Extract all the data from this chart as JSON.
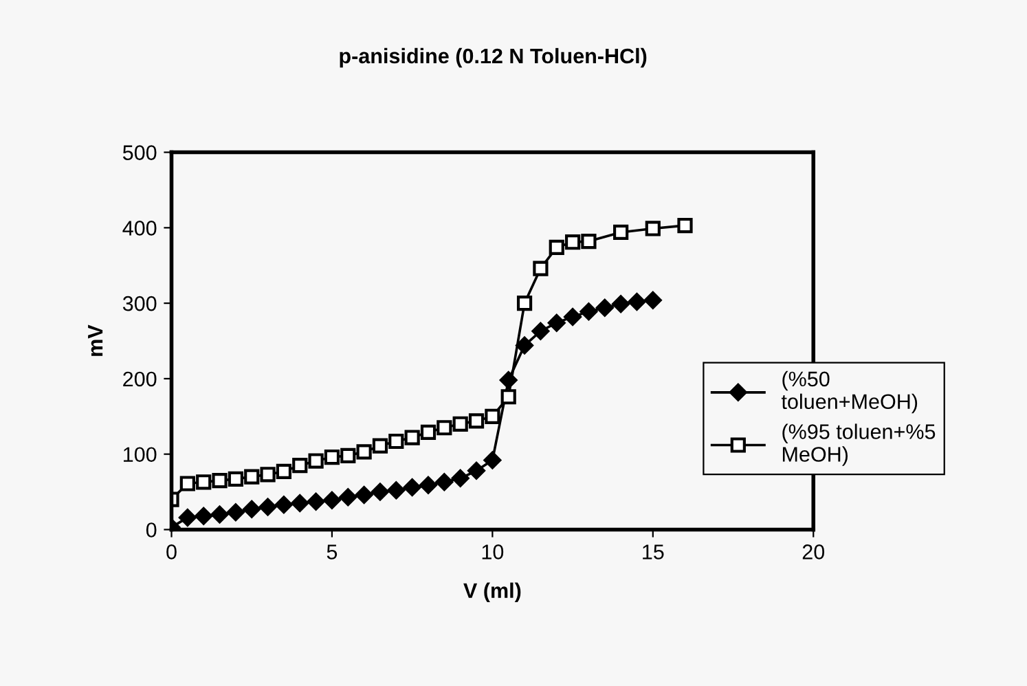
{
  "chart_data": {
    "type": "line",
    "title": "p-anisidine (0.12 N Toluen-HCl)",
    "xlabel": "V (ml)",
    "ylabel": "mV",
    "xlim": [
      0,
      20
    ],
    "xticks": [
      0,
      5,
      10,
      15,
      20
    ],
    "ylim": [
      0,
      500
    ],
    "yticks": [
      0,
      100,
      200,
      300,
      400,
      500
    ],
    "grid": false,
    "legend": "right",
    "series": [
      {
        "name": "(%50 toluen+MeOH)",
        "color": "#000000",
        "marker": "diamond",
        "x": [
          0,
          0.5,
          1,
          1.5,
          2,
          2.5,
          3,
          3.5,
          4,
          4.5,
          5,
          5.5,
          6,
          6.5,
          7,
          7.5,
          8,
          8.5,
          9,
          9.5,
          10,
          10.5,
          11,
          11.5,
          12,
          12.5,
          13,
          13.5,
          14,
          14.5,
          15
        ],
        "values": [
          3,
          16,
          18,
          20,
          23,
          27,
          30,
          33,
          35,
          37,
          39,
          43,
          46,
          50,
          52,
          56,
          59,
          63,
          68,
          78,
          92,
          198,
          244,
          263,
          274,
          282,
          289,
          294,
          299,
          302,
          304
        ]
      },
      {
        "name": "(%95 toluen+%5 MeOH)",
        "color": "#000000",
        "marker": "square",
        "x": [
          0,
          0.5,
          1,
          1.5,
          2,
          2.5,
          3,
          3.5,
          4,
          4.5,
          5,
          5.5,
          6,
          6.5,
          7,
          7.5,
          8,
          8.5,
          9,
          9.5,
          10,
          10.5,
          11,
          11.5,
          12,
          12.5,
          13,
          14,
          15,
          16
        ],
        "values": [
          40,
          61,
          63,
          65,
          67,
          70,
          73,
          77,
          85,
          91,
          96,
          98,
          103,
          111,
          117,
          122,
          129,
          135,
          140,
          144,
          150,
          176,
          300,
          346,
          374,
          381,
          382,
          394,
          399,
          403
        ]
      }
    ]
  }
}
